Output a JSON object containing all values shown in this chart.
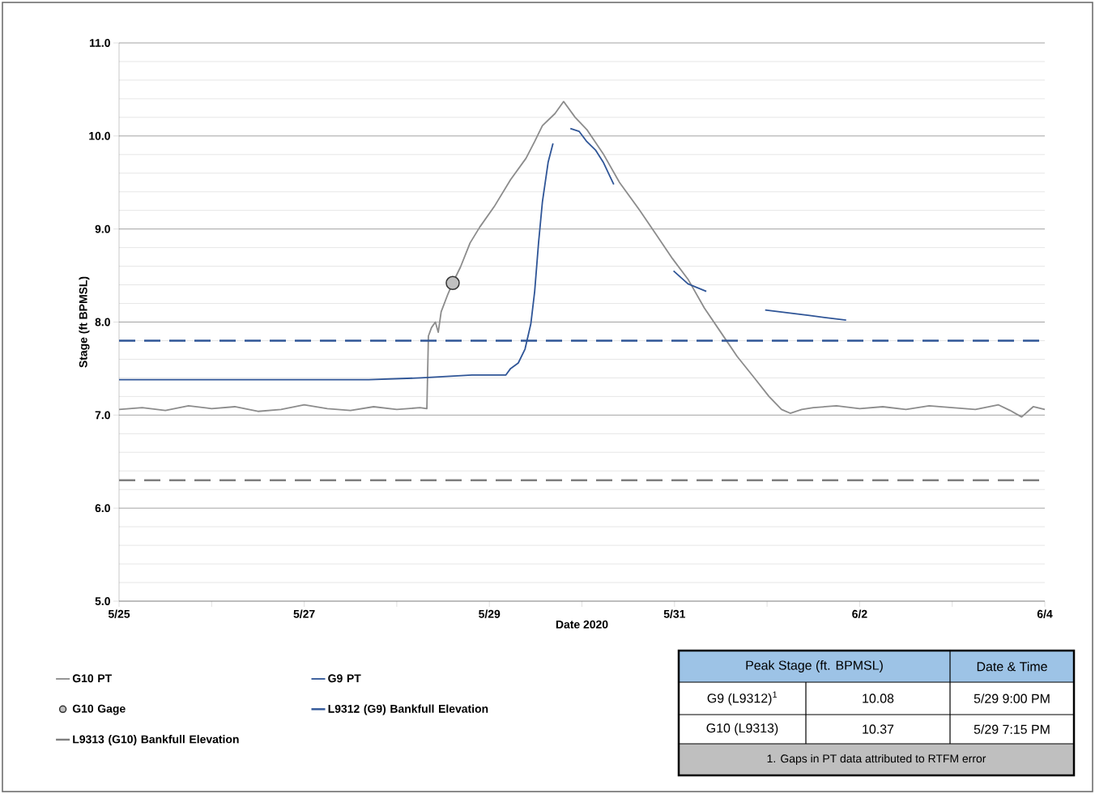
{
  "chart_data": {
    "type": "line",
    "xlabel": "Date 2020",
    "ylabel": "Stage (ft BPMSL)",
    "xlim": [
      "2020-05-25",
      "2020-06-04"
    ],
    "xticks": [
      {
        "value": "2020-05-25",
        "label": "5/25"
      },
      {
        "value": "2020-05-26",
        "label": null
      },
      {
        "value": "2020-05-27",
        "label": "5/27"
      },
      {
        "value": "2020-05-28",
        "label": null
      },
      {
        "value": "2020-05-29",
        "label": "5/29"
      },
      {
        "value": "2020-05-30",
        "label": null
      },
      {
        "value": "2020-05-31",
        "label": "5/31"
      },
      {
        "value": "2020-06-01",
        "label": null
      },
      {
        "value": "2020-06-02",
        "label": "6/2"
      },
      {
        "value": "2020-06-03",
        "label": null
      },
      {
        "value": "2020-06-04",
        "label": "6/4"
      }
    ],
    "ylim": [
      5,
      11
    ],
    "yticks": [
      {
        "value": 5,
        "label": "5.0"
      },
      {
        "value": 6,
        "label": "6.0"
      },
      {
        "value": 7,
        "label": "7.0"
      },
      {
        "value": 8,
        "label": "8.0"
      },
      {
        "value": 9,
        "label": "9.0"
      },
      {
        "value": 10,
        "label": "10.0"
      },
      {
        "value": 11,
        "label": "11.0"
      }
    ],
    "grid": "y",
    "legend": "bottom",
    "series": [
      {
        "name": "G10 PT",
        "color": "#8c8c8c",
        "x": [
          "2020-05-25T00:00",
          "2020-05-25T06:00",
          "2020-05-25T12:00",
          "2020-05-25T18:00",
          "2020-05-26T00:00",
          "2020-05-26T06:00",
          "2020-05-26T12:00",
          "2020-05-26T18:00",
          "2020-05-27T00:00",
          "2020-05-27T06:00",
          "2020-05-27T12:00",
          "2020-05-27T18:00",
          "2020-05-28T00:00",
          "2020-05-28T06:00",
          "2020-05-28T07:48",
          "2020-05-28T08:12",
          "2020-05-28T09:00",
          "2020-05-28T10:00",
          "2020-05-28T10:45",
          "2020-05-28T11:30",
          "2020-05-28T13:15",
          "2020-05-28T14:30",
          "2020-05-28T16:30",
          "2020-05-28T19:00",
          "2020-05-28T21:30",
          "2020-05-29T01:15",
          "2020-05-29T05:30",
          "2020-05-29T09:30",
          "2020-05-29T11:45",
          "2020-05-29T13:45",
          "2020-05-29T17:00",
          "2020-05-29T19:15",
          "2020-05-29T22:15",
          "2020-05-30T01:15",
          "2020-05-30T05:30",
          "2020-05-30T09:45",
          "2020-05-30T15:00",
          "2020-05-30T19:15",
          "2020-05-30T23:30",
          "2020-05-31T03:30",
          "2020-05-31T07:45",
          "2020-05-31T12:00",
          "2020-05-31T16:15",
          "2020-05-31T20:30",
          "2020-06-01T00:30",
          "2020-06-01T03:45",
          "2020-06-01T06:00",
          "2020-06-01T09:00",
          "2020-06-01T12:00",
          "2020-06-01T18:00",
          "2020-06-02T00:00",
          "2020-06-02T06:00",
          "2020-06-02T12:00",
          "2020-06-02T18:00",
          "2020-06-03T00:00",
          "2020-06-03T06:00",
          "2020-06-03T12:00",
          "2020-06-03T15:00",
          "2020-06-03T18:00",
          "2020-06-03T21:00",
          "2020-06-04T00:00"
        ],
        "values": [
          7.06,
          7.08,
          7.05,
          7.1,
          7.07,
          7.09,
          7.04,
          7.06,
          7.11,
          7.07,
          7.05,
          7.09,
          7.06,
          7.08,
          7.07,
          7.85,
          7.94,
          8.0,
          7.89,
          8.11,
          8.3,
          8.42,
          8.59,
          8.85,
          9.02,
          9.24,
          9.53,
          9.76,
          9.94,
          10.11,
          10.24,
          10.37,
          10.2,
          10.07,
          9.81,
          9.5,
          9.2,
          8.94,
          8.68,
          8.46,
          8.15,
          7.89,
          7.63,
          7.41,
          7.2,
          7.06,
          7.02,
          7.06,
          7.08,
          7.1,
          7.07,
          7.09,
          7.06,
          7.1,
          7.08,
          7.06,
          7.11,
          7.05,
          6.98,
          7.09,
          7.06
        ]
      },
      {
        "name": "G9 PT",
        "color": "#2f5597",
        "x": [
          "2020-05-25T00:00",
          "2020-05-27T16:45",
          "2020-05-28T06:15",
          "2020-05-28T19:30",
          "2020-05-29T04:15",
          "2020-05-29T05:30",
          "2020-05-29T07:30",
          "2020-05-29T09:15",
          "2020-05-29T10:45",
          "2020-05-29T11:45",
          "2020-05-29T12:45",
          "2020-05-29T13:45",
          "2020-05-29T15:15",
          "2020-05-29T16:30",
          "2020-05-29T18:45",
          "2020-05-29T21:00",
          "2020-05-29T23:15",
          "2020-05-30T01:15",
          "2020-05-30T03:30",
          "2020-05-30T05:30",
          "2020-05-30T08:15",
          "2020-05-30T16:00",
          "2020-05-30T23:45",
          "2020-05-31T03:30",
          "2020-05-31T08:15",
          "2020-05-31T16:00",
          "2020-05-31T23:30",
          "2020-06-01T11:00",
          "2020-06-01T20:30"
        ],
        "values": [
          7.38,
          7.38,
          7.4,
          7.43,
          7.43,
          7.5,
          7.56,
          7.71,
          7.98,
          8.33,
          8.85,
          9.29,
          9.72,
          9.92,
          null,
          10.08,
          10.05,
          9.94,
          9.85,
          9.72,
          9.48,
          null,
          8.55,
          8.41,
          8.33,
          null,
          8.13,
          8.07,
          8.02
        ]
      },
      {
        "name": "G10 Gage",
        "type": "scatter",
        "marker": "circle",
        "color": "#c0c0c0",
        "x": [
          "2020-05-28T14:30"
        ],
        "values": [
          8.42
        ]
      }
    ],
    "ref_lines": [
      {
        "axis": "y",
        "value": 7.8,
        "label": "L9312 (G9) Bankfull Elevation",
        "color": "#2f5597",
        "line_style": "dashed"
      },
      {
        "axis": "y",
        "value": 6.3,
        "label": "L9313 (G10) Bankfull Elevation",
        "color": "#7f7f7f",
        "line_style": "dashed"
      }
    ],
    "annotations": [
      "Peak Stage (ft. BPMSL)",
      "Date & Time",
      "G9 (L9312)$^{1}$",
      "10.08",
      "5/29 9:00 PM",
      "G10 (L9313)",
      "10.37",
      "5/29 7:15 PM",
      "1. Gaps in PT data attributed to RTFM error"
    ]
  }
}
